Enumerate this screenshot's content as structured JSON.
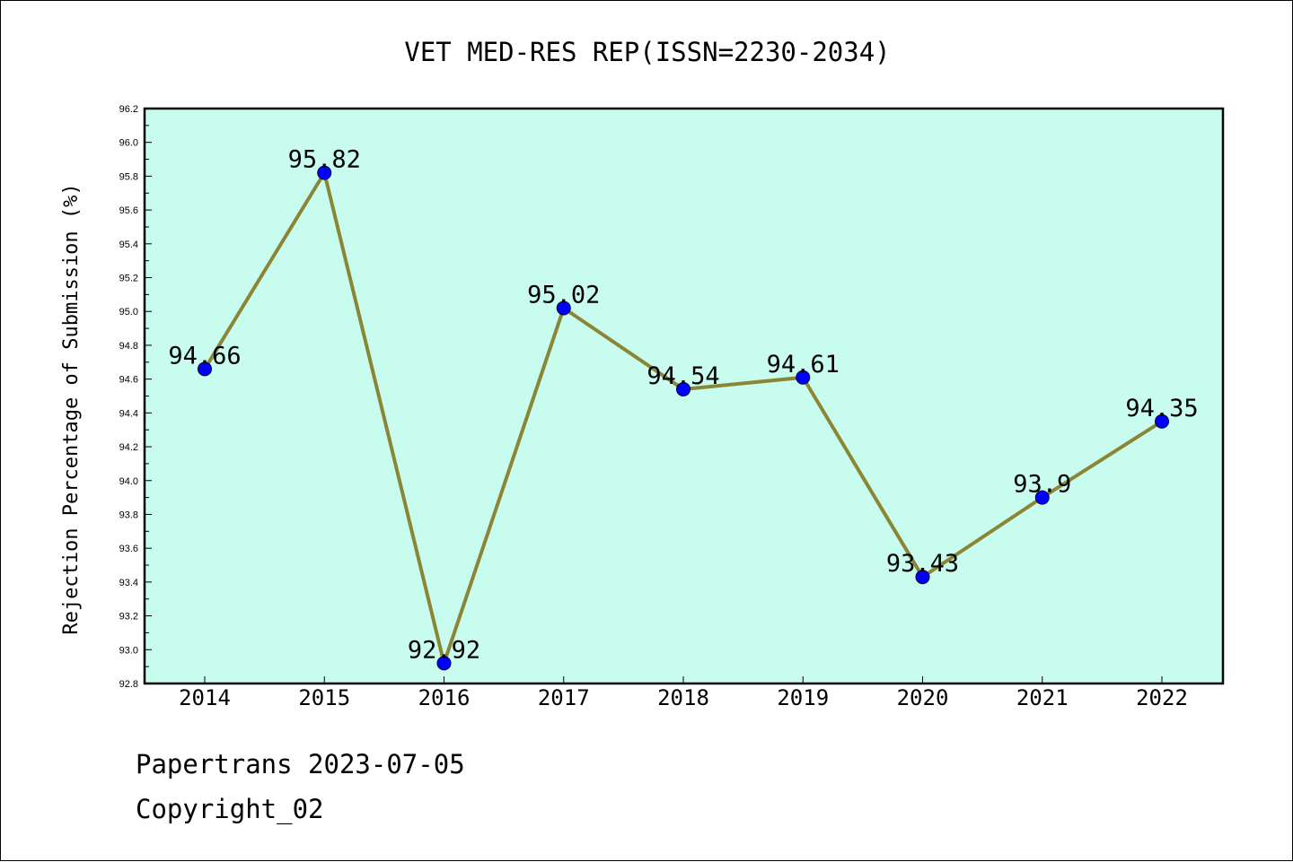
{
  "chart_data": {
    "type": "line",
    "title": "VET MED-RES REP(ISSN=2230-2034)",
    "xlabel": "",
    "ylabel": "Rejection Percentage of Submission (%)",
    "categories": [
      "2014",
      "2015",
      "2016",
      "2017",
      "2018",
      "2019",
      "2020",
      "2021",
      "2022"
    ],
    "values": [
      94.66,
      95.82,
      92.92,
      95.02,
      94.54,
      94.61,
      93.43,
      93.9,
      94.35
    ],
    "data_labels": [
      "94.66",
      "95.82",
      "92.92",
      "95.02",
      "94.54",
      "94.61",
      "93.43",
      "93.9",
      "94.35"
    ],
    "ylim": [
      92.8,
      96.2
    ],
    "yticks": [
      "92.8",
      "93.0",
      "93.2",
      "93.4",
      "93.6",
      "93.8",
      "94.0",
      "94.2",
      "94.4",
      "94.6",
      "94.8",
      "95.0",
      "95.2",
      "95.4",
      "95.6",
      "95.8",
      "96.0",
      "96.2"
    ],
    "grid": false,
    "legend": "none",
    "colors": {
      "plot_background": "#c8fcee",
      "line": "#8b8636",
      "marker": "#0000ff",
      "axes": "#000000"
    }
  },
  "footer": {
    "line1": "Papertrans 2023-07-05",
    "line2": "Copyright_02"
  }
}
